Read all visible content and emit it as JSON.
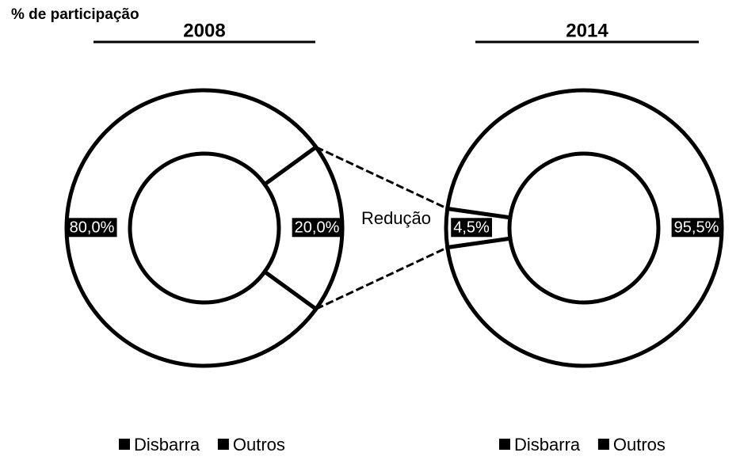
{
  "chart_data": [
    {
      "type": "donut",
      "title": "2008",
      "subtitle": "% de participação",
      "annotation": "Redução",
      "categories": [
        "Disbarra",
        "Outros"
      ],
      "values": [
        20,
        80
      ],
      "value_labels": [
        "20,0%",
        "80,0%"
      ],
      "colors": [
        "#ffffff",
        "#ffffff"
      ],
      "edgecolor": "#000000",
      "legend": "bottom"
    },
    {
      "type": "donut",
      "title": "2014",
      "categories": [
        "Disbarra",
        "Outros"
      ],
      "values": [
        4.5,
        95.5
      ],
      "value_labels": [
        "4,5%",
        "95,5%"
      ],
      "colors": [
        "#ffffff",
        "#ffffff"
      ],
      "edgecolor": "#000000",
      "legend": "bottom"
    }
  ]
}
